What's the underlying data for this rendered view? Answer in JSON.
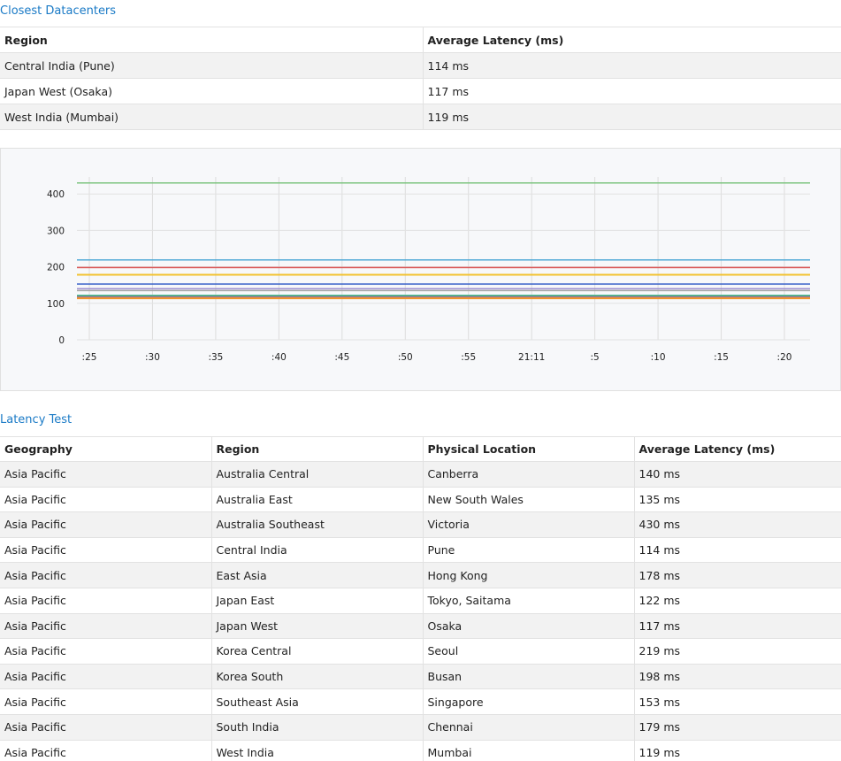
{
  "closest": {
    "title": "Closest Datacenters",
    "headers": [
      "Region",
      "Average Latency (ms)"
    ],
    "rows": [
      [
        "Central India (Pune)",
        "114 ms"
      ],
      [
        "Japan West (Osaka)",
        "117 ms"
      ],
      [
        "West India (Mumbai)",
        "119 ms"
      ]
    ]
  },
  "latency": {
    "title": "Latency Test",
    "headers": [
      "Geography",
      "Region",
      "Physical Location",
      "Average Latency (ms)"
    ],
    "rows": [
      [
        "Asia Pacific",
        "Australia Central",
        "Canberra",
        "140 ms"
      ],
      [
        "Asia Pacific",
        "Australia East",
        "New South Wales",
        "135 ms"
      ],
      [
        "Asia Pacific",
        "Australia Southeast",
        "Victoria",
        "430 ms"
      ],
      [
        "Asia Pacific",
        "Central India",
        "Pune",
        "114 ms"
      ],
      [
        "Asia Pacific",
        "East Asia",
        "Hong Kong",
        "178 ms"
      ],
      [
        "Asia Pacific",
        "Japan East",
        "Tokyo, Saitama",
        "122 ms"
      ],
      [
        "Asia Pacific",
        "Japan West",
        "Osaka",
        "117 ms"
      ],
      [
        "Asia Pacific",
        "Korea Central",
        "Seoul",
        "219 ms"
      ],
      [
        "Asia Pacific",
        "Korea South",
        "Busan",
        "198 ms"
      ],
      [
        "Asia Pacific",
        "Southeast Asia",
        "Singapore",
        "153 ms"
      ],
      [
        "Asia Pacific",
        "South India",
        "Chennai",
        "179 ms"
      ],
      [
        "Asia Pacific",
        "West India",
        "Mumbai",
        "119 ms"
      ]
    ]
  },
  "chart_data": {
    "type": "line",
    "x": [
      ":25",
      ":30",
      ":35",
      ":40",
      ":45",
      ":50",
      ":55",
      "21:11",
      ":5",
      ":10",
      ":15",
      ":20"
    ],
    "yticks": [
      0,
      100,
      200,
      300,
      400
    ],
    "ylim": [
      0,
      430
    ],
    "grid": true,
    "series": [
      {
        "values": [
          430,
          430,
          430,
          430,
          430,
          430,
          430,
          430,
          430,
          430,
          430,
          430
        ],
        "color": "#7cc47f"
      },
      {
        "values": [
          219,
          219,
          219,
          219,
          219,
          219,
          219,
          219,
          219,
          219,
          219,
          219
        ],
        "color": "#4fa9d6"
      },
      {
        "values": [
          198,
          198,
          198,
          198,
          198,
          198,
          198,
          198,
          198,
          198,
          198,
          198
        ],
        "color": "#d94f4f"
      },
      {
        "values": [
          179,
          179,
          179,
          179,
          179,
          179,
          179,
          179,
          179,
          179,
          179,
          179
        ],
        "color": "#f2c230"
      },
      {
        "values": [
          178,
          178,
          178,
          178,
          178,
          178,
          178,
          178,
          178,
          178,
          178,
          178
        ],
        "color": "#f2c230"
      },
      {
        "values": [
          153,
          153,
          153,
          153,
          153,
          153,
          153,
          153,
          153,
          153,
          153,
          153
        ],
        "color": "#3a63c9"
      },
      {
        "values": [
          140,
          140,
          140,
          140,
          140,
          140,
          140,
          140,
          140,
          140,
          140,
          140
        ],
        "color": "#9c8fd0"
      },
      {
        "values": [
          135,
          135,
          135,
          135,
          135,
          135,
          135,
          135,
          135,
          135,
          135,
          135
        ],
        "color": "#a3a3a3"
      },
      {
        "values": [
          122,
          122,
          122,
          122,
          122,
          122,
          122,
          122,
          122,
          122,
          122,
          122
        ],
        "color": "#45b8a8"
      },
      {
        "values": [
          119,
          119,
          119,
          119,
          119,
          119,
          119,
          119,
          119,
          119,
          119,
          119
        ],
        "color": "#5cb85c"
      },
      {
        "values": [
          117,
          117,
          117,
          117,
          117,
          117,
          117,
          117,
          117,
          117,
          117,
          117
        ],
        "color": "#8e6bb8"
      },
      {
        "values": [
          114,
          114,
          114,
          114,
          114,
          114,
          114,
          114,
          114,
          114,
          114,
          114
        ],
        "color": "#f0932b"
      }
    ]
  }
}
